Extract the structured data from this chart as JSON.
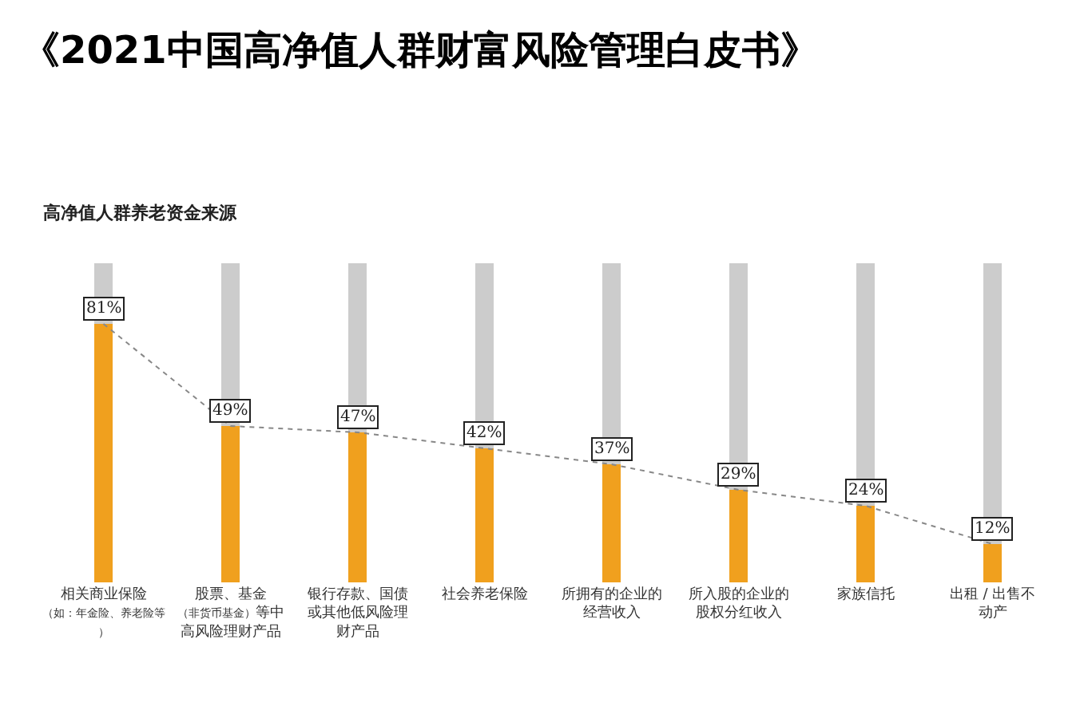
{
  "chart_data": {
    "type": "bar",
    "title": "《2021中国高净值人群财富风险管理白皮书》",
    "subtitle": "高净值人群养老资金来源",
    "categories": [
      "相关商业保险（如：年金险、养老险等）",
      "股票、基金（非货币基金）等中高风险理财产品",
      "银行存款、国债或其他低风险理财产品",
      "社会养老保险",
      "所拥有的企业的经营收入",
      "所入股的企业的股权分红收入",
      "家族信托",
      "出租 / 出售不动产"
    ],
    "stacked": true,
    "ylim": [
      0,
      100
    ],
    "tick_labels": "x",
    "series": [
      {
        "color": "#f0a01e",
        "values": [
          81,
          49,
          47,
          42,
          37,
          29,
          24,
          12
        ],
        "value_labels": [
          "81%",
          "49%",
          "47%",
          "42%",
          "37%",
          "29%",
          "24%",
          "12%"
        ]
      },
      {
        "color": "#cccccc",
        "values": [
          19,
          51,
          53,
          58,
          63,
          71,
          76,
          88
        ]
      },
      {
        "type": "line",
        "color": "#888888",
        "line_style": "dotted",
        "marker": "none",
        "values": [
          81,
          49,
          47,
          42,
          37,
          29,
          24,
          12
        ]
      }
    ]
  }
}
